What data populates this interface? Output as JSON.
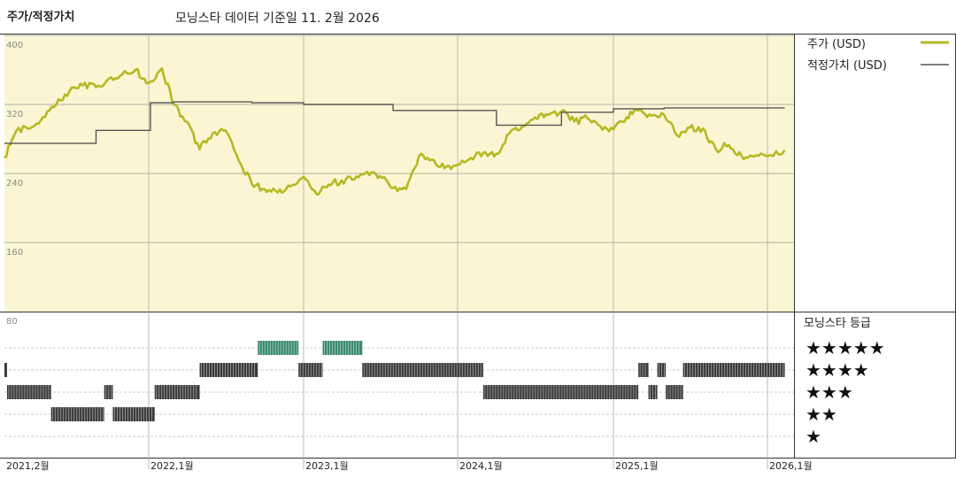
{
  "header": {
    "title": "주가/적정가치",
    "subtitle": "모닝스타 데이터 기준일 11. 2월 2026"
  },
  "chart_data": {
    "type": "line",
    "ylim": [
      80,
      400
    ],
    "y_ticks": [
      400,
      320,
      240,
      160,
      80
    ],
    "x_ticks": [
      "2021,2월",
      "2022,1월",
      "2023,1월",
      "2024,1월",
      "2025,1월",
      "2026,1월"
    ],
    "x_range": [
      "2021-02-01",
      "2026-02-11"
    ],
    "legend_position": "right",
    "legend": [
      {
        "label": "주가 (USD)",
        "color": "#b5b823"
      },
      {
        "label": "적정가치 (USD)",
        "color": "#555555"
      }
    ],
    "series": [
      {
        "name": "주가 (USD)",
        "color": "#b5b823",
        "x": [
          "2021-02-01",
          "2021-03-01",
          "2021-04-01",
          "2021-05-01",
          "2021-06-01",
          "2021-07-01",
          "2021-08-01",
          "2021-09-01",
          "2021-10-01",
          "2021-11-01",
          "2021-12-01",
          "2022-01-01",
          "2022-02-01",
          "2022-03-01",
          "2022-04-01",
          "2022-05-01",
          "2022-06-01",
          "2022-07-01",
          "2022-08-01",
          "2022-09-01",
          "2022-10-01",
          "2022-11-01",
          "2022-12-01",
          "2023-01-01",
          "2023-02-01",
          "2023-03-01",
          "2023-04-01",
          "2023-05-01",
          "2023-06-01",
          "2023-07-01",
          "2023-08-01",
          "2023-09-01",
          "2023-10-01",
          "2023-11-01",
          "2023-12-01",
          "2024-01-01",
          "2024-02-01",
          "2024-03-01",
          "2024-04-01",
          "2024-05-01",
          "2024-06-01",
          "2024-07-01",
          "2024-08-01",
          "2024-09-01",
          "2024-10-01",
          "2024-11-01",
          "2024-12-01",
          "2025-01-01",
          "2025-02-01",
          "2025-03-01",
          "2025-04-01",
          "2025-05-01",
          "2025-06-01",
          "2025-07-01",
          "2025-08-01",
          "2025-09-01",
          "2025-10-01",
          "2025-11-01",
          "2025-12-01",
          "2026-01-01",
          "2026-02-11"
        ],
        "values": [
          258,
          290,
          292,
          305,
          320,
          335,
          342,
          340,
          350,
          355,
          360,
          345,
          362,
          320,
          300,
          268,
          287,
          290,
          255,
          228,
          222,
          218,
          225,
          236,
          216,
          227,
          232,
          233,
          242,
          237,
          223,
          222,
          260,
          256,
          246,
          250,
          258,
          264,
          263,
          286,
          295,
          305,
          308,
          312,
          300,
          304,
          295,
          291,
          305,
          313,
          307,
          308,
          284,
          293,
          292,
          268,
          273,
          260,
          260,
          260,
          267
        ]
      },
      {
        "name": "적정가치 (USD)",
        "color": "#555555",
        "step": true,
        "x": [
          "2021-02-01",
          "2021-06-01",
          "2021-09-01",
          "2022-01-05",
          "2022-03-01",
          "2022-06-01",
          "2022-09-01",
          "2023-01-01",
          "2023-04-01",
          "2023-08-01",
          "2023-12-01",
          "2024-04-01",
          "2024-09-01",
          "2025-01-01",
          "2025-05-01",
          "2025-12-01",
          "2026-02-11"
        ],
        "values": [
          275,
          275,
          290,
          322,
          323,
          323,
          322,
          320,
          320,
          313,
          313,
          296,
          311,
          315,
          316,
          316,
          316
        ]
      }
    ],
    "rating_panel": {
      "title": "모닝스타 등급",
      "levels": [
        "★★★★★",
        "★★★★",
        "★★★",
        "★★",
        "★"
      ],
      "colors": {
        "5": "#3a8a6e",
        "default": "#3a3a3a"
      },
      "segments": [
        {
          "start": "2021-02-01",
          "end": "2021-02-07",
          "stars": 4
        },
        {
          "start": "2021-02-07",
          "end": "2021-05-20",
          "stars": 3
        },
        {
          "start": "2021-05-20",
          "end": "2021-09-20",
          "stars": 2
        },
        {
          "start": "2021-09-20",
          "end": "2021-10-10",
          "stars": 3
        },
        {
          "start": "2021-10-10",
          "end": "2022-01-15",
          "stars": 2
        },
        {
          "start": "2022-01-15",
          "end": "2022-05-01",
          "stars": 3
        },
        {
          "start": "2022-05-01",
          "end": "2022-09-15",
          "stars": 4
        },
        {
          "start": "2022-09-15",
          "end": "2022-12-20",
          "stars": 5
        },
        {
          "start": "2022-12-20",
          "end": "2023-02-15",
          "stars": 4
        },
        {
          "start": "2023-02-15",
          "end": "2023-05-20",
          "stars": 5
        },
        {
          "start": "2023-05-20",
          "end": "2024-03-01",
          "stars": 4
        },
        {
          "start": "2024-03-01",
          "end": "2025-03-01",
          "stars": 3
        },
        {
          "start": "2025-03-01",
          "end": "2025-03-25",
          "stars": 4
        },
        {
          "start": "2025-03-25",
          "end": "2025-04-15",
          "stars": 3
        },
        {
          "start": "2025-04-15",
          "end": "2025-05-05",
          "stars": 4
        },
        {
          "start": "2025-05-05",
          "end": "2025-06-15",
          "stars": 3
        },
        {
          "start": "2025-06-15",
          "end": "2026-02-11",
          "stars": 4
        }
      ]
    }
  }
}
